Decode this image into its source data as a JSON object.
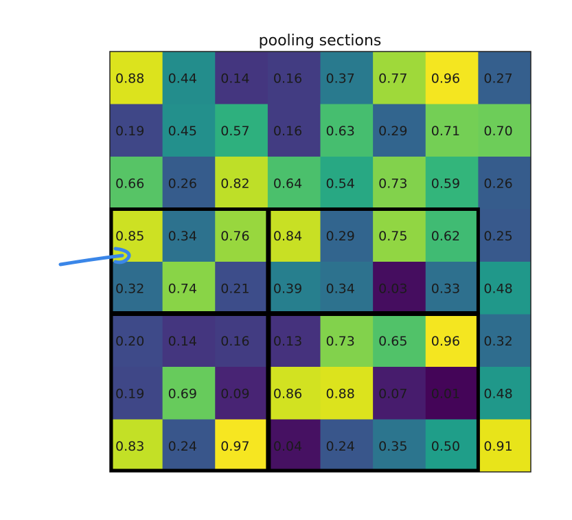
{
  "chart_data": {
    "type": "heatmap",
    "title": "pooling sections",
    "colormap": "viridis",
    "vmin": 0.0,
    "vmax": 1.0,
    "rows": 8,
    "cols": 8,
    "values": [
      [
        0.88,
        0.44,
        0.14,
        0.16,
        0.37,
        0.77,
        0.96,
        0.27
      ],
      [
        0.19,
        0.45,
        0.57,
        0.16,
        0.63,
        0.29,
        0.71,
        0.7
      ],
      [
        0.66,
        0.26,
        0.82,
        0.64,
        0.54,
        0.73,
        0.59,
        0.26
      ],
      [
        0.85,
        0.34,
        0.76,
        0.84,
        0.29,
        0.75,
        0.62,
        0.25
      ],
      [
        0.32,
        0.74,
        0.21,
        0.39,
        0.34,
        0.03,
        0.33,
        0.48
      ],
      [
        0.2,
        0.14,
        0.16,
        0.13,
        0.73,
        0.65,
        0.96,
        0.32
      ],
      [
        0.19,
        0.69,
        0.09,
        0.86,
        0.88,
        0.07,
        0.01,
        0.48
      ],
      [
        0.83,
        0.24,
        0.97,
        0.04,
        0.24,
        0.35,
        0.5,
        0.91
      ]
    ],
    "labels": [
      [
        "0.88",
        "0.44",
        "0.14",
        "0.16",
        "0.37",
        "0.77",
        "0.96",
        "0.27"
      ],
      [
        "0.19",
        "0.45",
        "0.57",
        "0.16",
        "0.63",
        "0.29",
        "0.71",
        "0.70"
      ],
      [
        "0.66",
        "0.26",
        "0.82",
        "0.64",
        "0.54",
        "0.73",
        "0.59",
        "0.26"
      ],
      [
        "0.85",
        "0.34",
        "0.76",
        "0.84",
        "0.29",
        "0.75",
        "0.62",
        "0.25"
      ],
      [
        "0.32",
        "0.74",
        "0.21",
        "0.39",
        "0.34",
        "0.03",
        "0.33",
        "0.48"
      ],
      [
        "0.20",
        "0.14",
        "0.16",
        "0.13",
        "0.73",
        "0.65",
        "0.96",
        "0.32"
      ],
      [
        "0.19",
        "0.69",
        "0.09",
        "0.86",
        "0.88",
        "0.07",
        "0.01",
        "0.48"
      ],
      [
        "0.83",
        "0.24",
        "0.97",
        "0.04",
        "0.24",
        "0.35",
        "0.50",
        "0.91"
      ]
    ],
    "pooling_sections": [
      {
        "row_start": 3,
        "row_end": 4,
        "col_start": 0,
        "col_end": 2
      },
      {
        "row_start": 3,
        "row_end": 4,
        "col_start": 3,
        "col_end": 6
      },
      {
        "row_start": 5,
        "row_end": 7,
        "col_start": 0,
        "col_end": 2
      },
      {
        "row_start": 5,
        "row_end": 7,
        "col_start": 3,
        "col_end": 6
      }
    ],
    "section_border_color": "#000000",
    "annotation_arrow_color": "#3a86e8",
    "xlabel": "",
    "ylabel": ""
  }
}
